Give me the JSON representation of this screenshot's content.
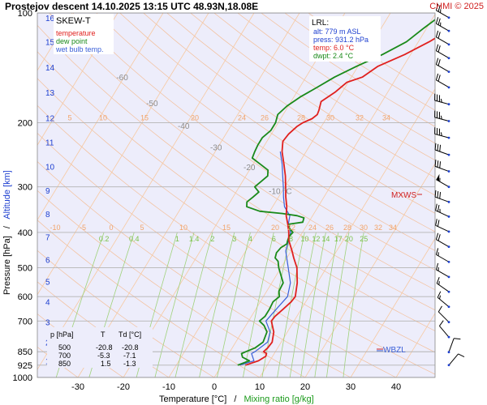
{
  "header": {
    "title": "Prostejov   descent   14.10.2025 13:15 UTC  48.93N,18.08E",
    "credit": "CHMI © 2025"
  },
  "legend": {
    "title": "SKEW-T",
    "items": [
      {
        "label": "temperature",
        "color": "#e0201e"
      },
      {
        "label": "dew point",
        "color": "#1a8a1a"
      },
      {
        "label": "wet bulb temp.",
        "color": "#3a5fd8"
      }
    ]
  },
  "lrl_box": {
    "title": "LRL:",
    "lines": [
      {
        "text": "alt: 779 m ASL",
        "color": "#1d3fd0"
      },
      {
        "text": "press: 931.2 hPa",
        "color": "#1d3fd0"
      },
      {
        "text": "temp: 6.0 °C",
        "color": "#e0201e"
      },
      {
        "text": "dwpt: 2.4 °C",
        "color": "#1a8a1a"
      }
    ]
  },
  "table": {
    "headers": [
      "p [hPa]",
      "T",
      "Td [°C]"
    ],
    "rows": [
      [
        "500",
        "-20.8",
        "-20.8"
      ],
      [
        "700",
        "-5.3",
        "-7.1"
      ],
      [
        "850",
        "1.5",
        "-1.3"
      ]
    ]
  },
  "markers": {
    "mxws": "MXWS",
    "wbzl": "WBZL"
  },
  "axes": {
    "xlabel_temperature": "Temperature [°C]",
    "xlabel_sep": "/",
    "xlabel_mixing": "Mixing ratio [g/kg]",
    "ylabel_pressure": "Pressure [hPa]",
    "ylabel_sep": "/",
    "ylabel_altitude": "Altitude [km]"
  },
  "colors": {
    "background": "#ededfb",
    "isobar": "#b4b4b4",
    "isotherm": "#f7c9a0",
    "dry_adiabat": "#f5b482",
    "mixing_ratio": "#9fd27a",
    "temperature": "#e0201e",
    "dewpoint": "#1a8a1a",
    "wetbulb": "#3a5fd8",
    "altitude": "#1d3fd0",
    "wind_barb": "#000000",
    "mxws": "#d02020"
  },
  "chart_data": {
    "type": "line",
    "diagram": "skew-T log-p",
    "x_ticks": [
      -30,
      -20,
      -10,
      0,
      10,
      20,
      30,
      40
    ],
    "xlim": [
      -35,
      48
    ],
    "ylim_hpa": [
      1000,
      100
    ],
    "pressure_ticks": [
      100,
      200,
      300,
      400,
      500,
      600,
      700,
      850,
      925,
      1000
    ],
    "altitude_ticks_km": [
      {
        "km": "1",
        "p": 900
      },
      {
        "km": "2",
        "p": 800
      },
      {
        "km": "3",
        "p": 705
      },
      {
        "km": "4",
        "p": 620
      },
      {
        "km": "5",
        "p": 545
      },
      {
        "km": "6",
        "p": 475
      },
      {
        "km": "7",
        "p": 412
      },
      {
        "km": "8",
        "p": 356
      },
      {
        "km": "9",
        "p": 307
      },
      {
        "km": "10",
        "p": 264
      },
      {
        "km": "11",
        "p": 226
      },
      {
        "km": "12",
        "p": 194
      },
      {
        "km": "13",
        "p": 165
      },
      {
        "km": "14",
        "p": 141
      },
      {
        "km": "15",
        "p": 120
      },
      {
        "km": "16",
        "p": 103
      }
    ],
    "isotherm_labels": [
      {
        "text": "-80 °C",
        "t": -80,
        "p": 108
      },
      {
        "text": "-70",
        "t": -70,
        "p": 128
      },
      {
        "text": "-60",
        "t": -60,
        "p": 153
      },
      {
        "text": "-50",
        "t": -50,
        "p": 180
      },
      {
        "text": "-40",
        "t": -40,
        "p": 208
      },
      {
        "text": "-30",
        "t": -30,
        "p": 238
      },
      {
        "text": "-20",
        "t": -20,
        "p": 270
      },
      {
        "text": "-10 °C",
        "t": -10,
        "p": 314
      }
    ],
    "mixing_ratio_labels": [
      "0.2",
      "0.4",
      "1",
      "1.4",
      "2",
      "3",
      "4",
      "6",
      "8",
      "10",
      "12",
      "14",
      "17",
      "20",
      "25"
    ],
    "theta_e_labels_upper": [
      "5",
      "10",
      "15",
      "20",
      "24",
      "26",
      "28",
      "30",
      "32",
      "34"
    ],
    "theta_e_labels_lower": [
      "-10",
      "-5",
      "0",
      "5",
      "10",
      "15",
      "20",
      "22",
      "24",
      "26",
      "28",
      "30",
      "32",
      "34"
    ],
    "series": [
      {
        "name": "temperature",
        "points": [
          [
            925,
            5.2
          ],
          [
            900,
            7.5
          ],
          [
            875,
            8.5
          ],
          [
            860,
            8.3
          ],
          [
            850,
            7.4
          ],
          [
            830,
            7.8
          ],
          [
            800,
            8.0
          ],
          [
            750,
            7.0
          ],
          [
            700,
            5.0
          ],
          [
            680,
            5.2
          ],
          [
            650,
            6.0
          ],
          [
            620,
            6.8
          ],
          [
            600,
            7.0
          ],
          [
            550,
            5.6
          ],
          [
            500,
            3.5
          ],
          [
            470,
            1.5
          ],
          [
            450,
            0.2
          ],
          [
            420,
            -2.0
          ],
          [
            400,
            -3.0
          ],
          [
            380,
            -4.3
          ],
          [
            360,
            -5.8
          ],
          [
            340,
            -6.9
          ],
          [
            320,
            -8.4
          ],
          [
            300,
            -9.8
          ],
          [
            280,
            -11.3
          ],
          [
            260,
            -13.2
          ],
          [
            240,
            -15.3
          ],
          [
            225,
            -16.5
          ],
          [
            215,
            -16.2
          ],
          [
            205,
            -15.4
          ],
          [
            200,
            -14.6
          ],
          [
            195,
            -13.1
          ],
          [
            190,
            -12.5
          ],
          [
            185,
            -12.7
          ],
          [
            175,
            -13.4
          ],
          [
            165,
            -11.6
          ],
          [
            155,
            -10.3
          ],
          [
            150,
            -7.6
          ],
          [
            140,
            -5.6
          ],
          [
            130,
            -1.3
          ],
          [
            120,
            2.4
          ],
          [
            110,
            5.7
          ],
          [
            101,
            9.1
          ]
        ]
      },
      {
        "name": "dew point",
        "points": [
          [
            925,
            3.5
          ],
          [
            900,
            5.5
          ],
          [
            880,
            3.5
          ],
          [
            860,
            2.8
          ],
          [
            850,
            3.5
          ],
          [
            830,
            5.0
          ],
          [
            800,
            6.0
          ],
          [
            750,
            5.5
          ],
          [
            720,
            4.0
          ],
          [
            700,
            2.4
          ],
          [
            680,
            3.0
          ],
          [
            650,
            3.0
          ],
          [
            620,
            2.8
          ],
          [
            600,
            3.5
          ],
          [
            580,
            2.7
          ],
          [
            550,
            2.5
          ],
          [
            500,
            -0.5
          ],
          [
            480,
            -1.5
          ],
          [
            470,
            -2.6
          ],
          [
            455,
            -3.0
          ],
          [
            440,
            -2.7
          ],
          [
            430,
            -1.9
          ],
          [
            420,
            -2.2
          ],
          [
            410,
            -2.4
          ],
          [
            400,
            -2.1
          ],
          [
            390,
            -3.4
          ],
          [
            380,
            -4.2
          ],
          [
            375,
            -1.3
          ],
          [
            365,
            -1.6
          ],
          [
            360,
            -3.4
          ],
          [
            355,
            -6.9
          ],
          [
            350,
            -12.2
          ],
          [
            340,
            -15.7
          ],
          [
            330,
            -16.3
          ],
          [
            320,
            -15.6
          ],
          [
            310,
            -15.0
          ],
          [
            300,
            -16.6
          ],
          [
            290,
            -15.9
          ],
          [
            280,
            -15.2
          ],
          [
            270,
            -15.9
          ],
          [
            260,
            -18.4
          ],
          [
            250,
            -21.0
          ],
          [
            240,
            -21.3
          ],
          [
            230,
            -21.5
          ],
          [
            220,
            -21.5
          ],
          [
            210,
            -20.6
          ],
          [
            200,
            -20.6
          ],
          [
            190,
            -21.2
          ],
          [
            180,
            -20.3
          ],
          [
            170,
            -18.6
          ],
          [
            160,
            -16.2
          ],
          [
            150,
            -13.7
          ],
          [
            140,
            -10.3
          ],
          [
            130,
            -6.2
          ],
          [
            120,
            -2.6
          ],
          [
            110,
            -0.6
          ],
          [
            101,
            1.6
          ]
        ]
      },
      {
        "name": "wet bulb temp.",
        "points": [
          [
            925,
            4.0
          ],
          [
            900,
            6.5
          ],
          [
            860,
            5.0
          ],
          [
            850,
            5.5
          ],
          [
            800,
            7.0
          ],
          [
            750,
            6.2
          ],
          [
            700,
            3.8
          ],
          [
            650,
            4.5
          ],
          [
            600,
            5.3
          ],
          [
            550,
            4.1
          ],
          [
            500,
            1.6
          ],
          [
            450,
            -1.2
          ],
          [
            400,
            -2.6
          ],
          [
            380,
            -4.2
          ],
          [
            360,
            -5.0
          ],
          [
            340,
            -7.4
          ],
          [
            320,
            -8.9
          ],
          [
            300,
            -10.3
          ],
          [
            280,
            -11.9
          ],
          [
            260,
            -13.6
          ],
          [
            240,
            -15.7
          ]
        ]
      }
    ],
    "wind_barbs": [
      {
        "p": 103,
        "dir": 300,
        "kt": 25
      },
      {
        "p": 112,
        "dir": 300,
        "kt": 25
      },
      {
        "p": 122,
        "dir": 300,
        "kt": 20
      },
      {
        "p": 133,
        "dir": 300,
        "kt": 20
      },
      {
        "p": 145,
        "dir": 300,
        "kt": 20
      },
      {
        "p": 160,
        "dir": 300,
        "kt": 20
      },
      {
        "p": 178,
        "dir": 285,
        "kt": 35
      },
      {
        "p": 198,
        "dir": 285,
        "kt": 35
      },
      {
        "p": 220,
        "dir": 285,
        "kt": 35
      },
      {
        "p": 245,
        "dir": 290,
        "kt": 30
      },
      {
        "p": 272,
        "dir": 290,
        "kt": 30
      },
      {
        "p": 300,
        "dir": 300,
        "kt": 55
      },
      {
        "p": 330,
        "dir": 290,
        "kt": 30
      },
      {
        "p": 362,
        "dir": 295,
        "kt": 25
      },
      {
        "p": 398,
        "dir": 295,
        "kt": 20
      },
      {
        "p": 438,
        "dir": 300,
        "kt": 20
      },
      {
        "p": 482,
        "dir": 300,
        "kt": 15
      },
      {
        "p": 530,
        "dir": 300,
        "kt": 15
      },
      {
        "p": 582,
        "dir": 305,
        "kt": 15
      },
      {
        "p": 640,
        "dir": 310,
        "kt": 15
      },
      {
        "p": 705,
        "dir": 315,
        "kt": 10
      },
      {
        "p": 775,
        "dir": 320,
        "kt": 10
      },
      {
        "p": 852,
        "dir": 20,
        "kt": 10
      },
      {
        "p": 925,
        "dir": 40,
        "kt": 10
      }
    ]
  }
}
